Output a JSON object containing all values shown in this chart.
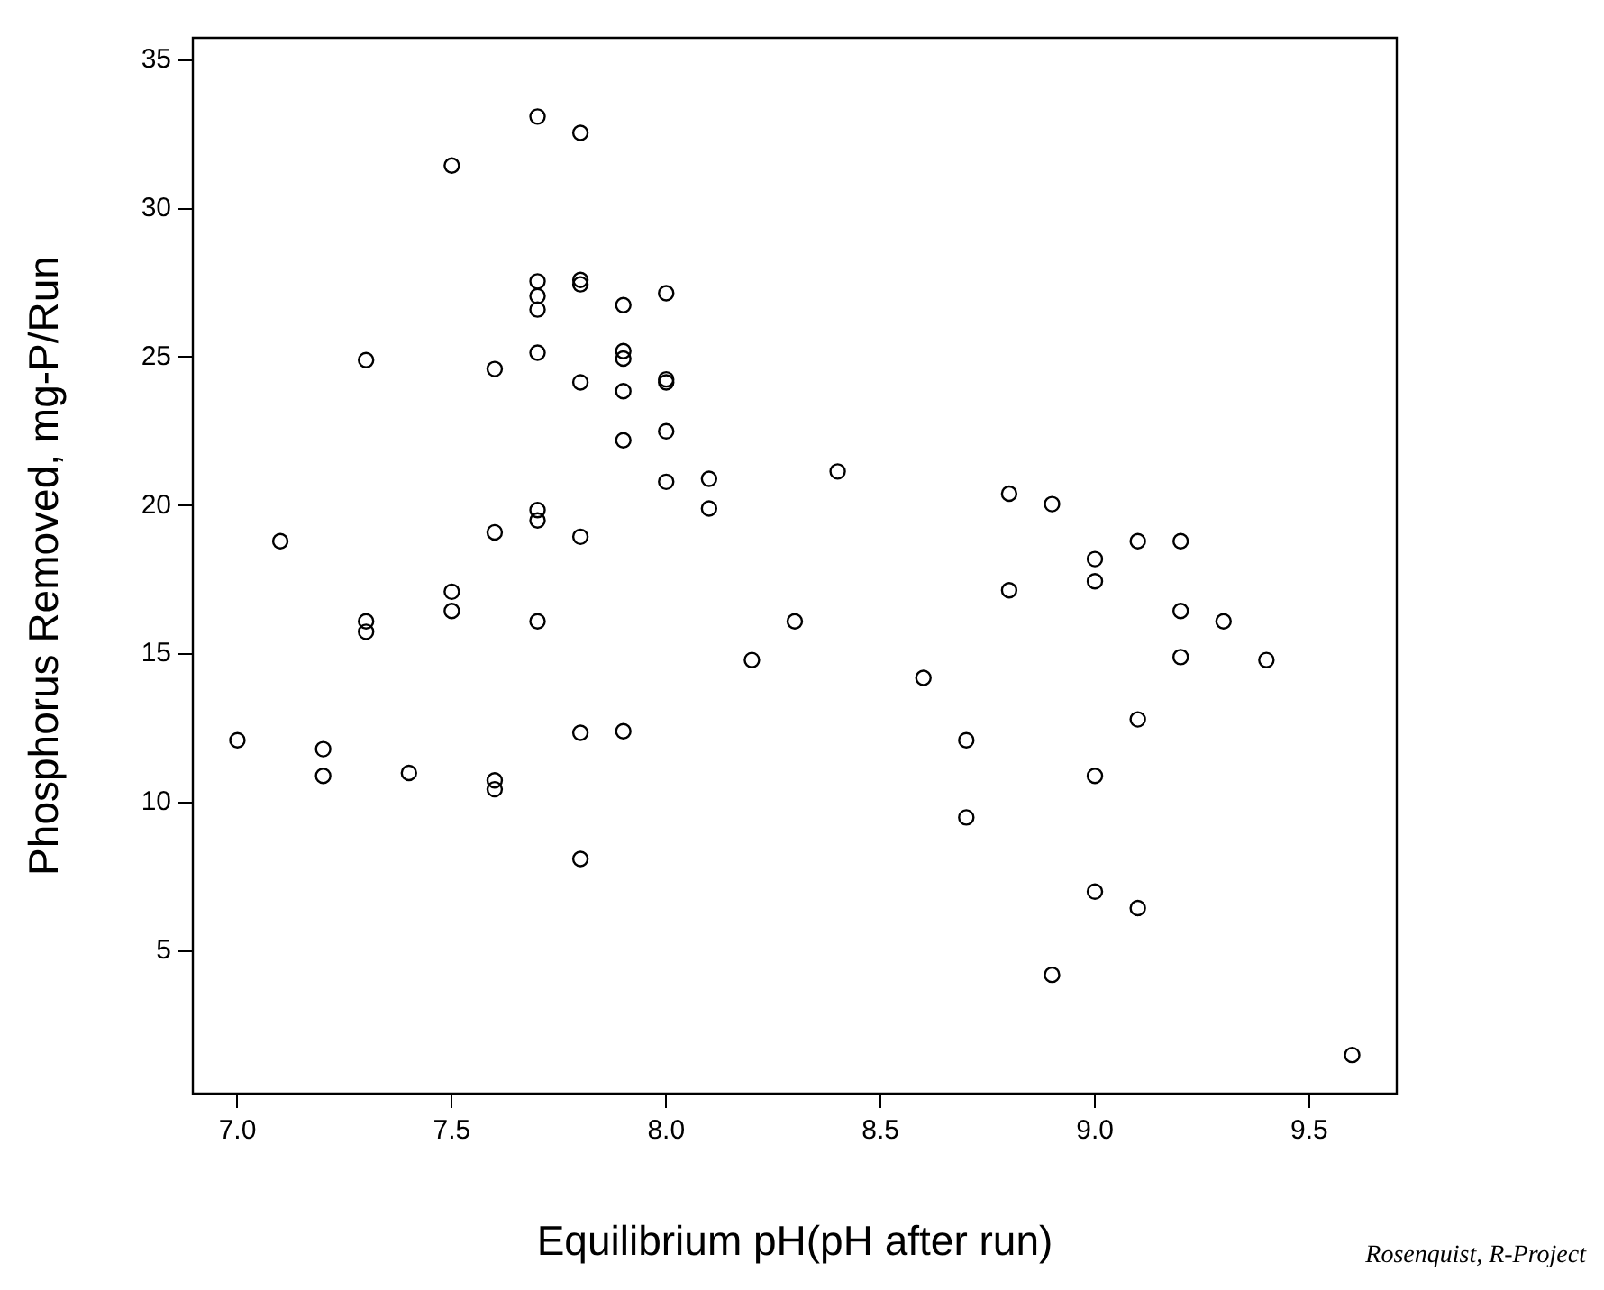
{
  "chart_data": {
    "type": "scatter",
    "xlabel": "Equilibrium pH(pH after run)",
    "ylabel": "Phosphorus Removed, mg-P/Run",
    "annotations": [
      "Rosenquist, R-Project"
    ],
    "marker": "circle",
    "grid": false,
    "legend": false,
    "xlim": [
      6.896,
      9.704
    ],
    "ylim": [
      0.2,
      35.75
    ],
    "xticks": [
      {
        "value": 7,
        "label": "7.0"
      },
      {
        "value": 7.5,
        "label": "7.5"
      },
      {
        "value": 8,
        "label": "8.0"
      },
      {
        "value": 8.5,
        "label": "8.5"
      },
      {
        "value": 9,
        "label": "9.0"
      },
      {
        "value": 9.5,
        "label": "9.5"
      }
    ],
    "yticks": [
      5,
      10,
      15,
      20,
      25,
      30,
      35
    ],
    "series": [
      {
        "color": "#000000",
        "x": [
          7.0,
          7.1,
          7.2,
          7.2,
          7.3,
          7.3,
          7.3,
          7.4,
          7.5,
          7.5,
          7.5,
          7.6,
          7.6,
          7.6,
          7.6,
          7.7,
          7.7,
          7.7,
          7.7,
          7.7,
          7.7,
          7.7,
          7.7,
          7.8,
          7.8,
          7.8,
          7.8,
          7.8,
          7.8,
          7.8,
          7.9,
          7.9,
          7.9,
          7.9,
          7.9,
          7.9,
          8.0,
          8.0,
          8.0,
          8.0,
          8.0,
          8.1,
          8.1,
          8.2,
          8.3,
          8.4,
          8.6,
          8.7,
          8.7,
          8.8,
          8.8,
          8.9,
          8.9,
          9.0,
          9.0,
          9.0,
          9.0,
          9.1,
          9.1,
          9.1,
          9.2,
          9.2,
          9.2,
          9.3,
          9.4,
          9.6
        ],
        "values": [
          12.1,
          18.8,
          11.8,
          10.9,
          24.9,
          16.1,
          15.75,
          11.0,
          31.45,
          17.1,
          16.45,
          24.6,
          19.1,
          10.75,
          10.45,
          33.1,
          27.55,
          27.05,
          26.6,
          25.15,
          19.85,
          19.5,
          16.1,
          32.55,
          27.6,
          27.45,
          24.15,
          18.95,
          12.35,
          8.1,
          26.75,
          25.2,
          24.95,
          23.85,
          22.2,
          12.4,
          27.15,
          24.25,
          24.15,
          22.5,
          20.8,
          20.9,
          19.9,
          14.8,
          16.1,
          21.15,
          14.2,
          12.1,
          9.5,
          20.4,
          17.15,
          20.05,
          4.2,
          18.2,
          17.45,
          10.9,
          7.0,
          18.8,
          12.8,
          6.45,
          18.8,
          16.45,
          14.9,
          16.1,
          14.8,
          1.5
        ]
      }
    ]
  }
}
